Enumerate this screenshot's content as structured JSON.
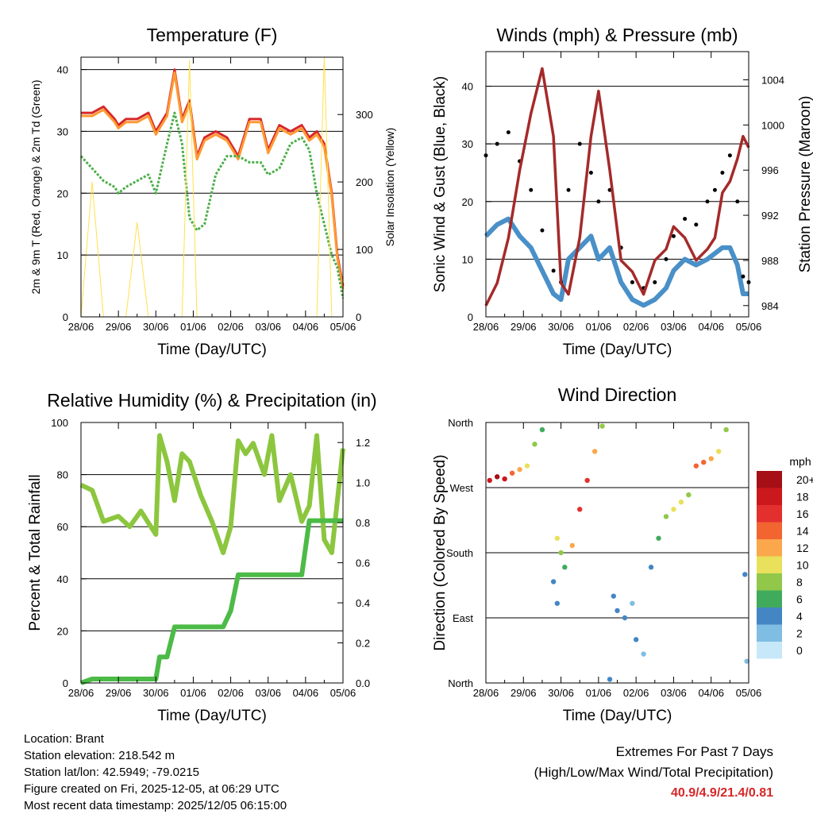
{
  "chart_data": [
    {
      "id": "temperature",
      "type": "line",
      "title": "Temperature (F)",
      "xlabel": "Time (Day/UTC)",
      "ylabel": "2m & 9m T (Red, Orange) & 2m Td (Green)",
      "ylabel_right": "Solar Insolation (Yellow)",
      "categories": [
        "28/06",
        "29/06",
        "30/06",
        "01/06",
        "02/06",
        "03/06",
        "04/06",
        "05/06"
      ],
      "ylim": [
        0,
        42
      ],
      "yticks": [
        0,
        10,
        20,
        30,
        40
      ],
      "y2lim": [
        0,
        385
      ],
      "y2ticks": [
        0,
        100,
        200,
        300
      ],
      "x": [
        0,
        0.3,
        0.6,
        0.9,
        1.0,
        1.2,
        1.5,
        1.8,
        2.0,
        2.3,
        2.5,
        2.7,
        2.9,
        3.1,
        3.3,
        3.6,
        3.9,
        4.2,
        4.5,
        4.8,
        5.0,
        5.3,
        5.6,
        5.9,
        6.1,
        6.3,
        6.5,
        6.7,
        6.85,
        7.0
      ],
      "series": [
        {
          "name": "2m T",
          "color": "#d62728",
          "values": [
            33,
            33,
            34,
            32,
            31,
            32,
            32,
            33,
            30,
            33,
            40,
            32,
            35,
            26,
            29,
            30,
            29,
            26,
            32,
            32,
            27,
            31,
            30,
            31,
            29,
            30,
            28,
            20,
            10,
            5
          ]
        },
        {
          "name": "9m T",
          "color": "#ff9933",
          "values": [
            32.5,
            32.5,
            33.5,
            31.5,
            30.5,
            31.5,
            31.5,
            32.5,
            29.5,
            32.5,
            39.5,
            31.5,
            34.5,
            25.5,
            28.5,
            29.5,
            28.5,
            25.5,
            31.5,
            31.5,
            26.5,
            30.5,
            29.5,
            30.5,
            28.5,
            29.5,
            27.5,
            19.5,
            9.5,
            4.5
          ]
        },
        {
          "name": "2m Td",
          "color": "#4daf4a",
          "values": [
            26,
            24,
            22,
            21,
            20,
            21,
            22,
            23,
            20,
            28,
            33,
            28,
            16,
            14,
            15,
            23,
            26,
            26,
            25,
            25,
            23,
            24,
            28,
            29,
            27,
            20,
            15,
            10,
            8,
            3
          ]
        },
        {
          "name": "Solar Insolation",
          "color": "#ffe14d",
          "values": [
            0,
            200,
            0,
            0,
            0,
            0,
            140,
            0,
            0,
            0,
            0,
            0,
            380,
            0,
            0,
            0,
            0,
            0,
            0,
            0,
            0,
            0,
            0,
            0,
            0,
            0,
            385,
            0,
            0,
            0
          ]
        }
      ]
    },
    {
      "id": "winds",
      "type": "line",
      "title": "Winds (mph) & Pressure (mb)",
      "xlabel": "Time (Day/UTC)",
      "ylabel": "Sonic Wind & Gust (Blue, Black)",
      "ylabel_right": "Station Pressure (Maroon)",
      "categories": [
        "28/06",
        "29/06",
        "30/06",
        "01/06",
        "02/06",
        "03/06",
        "04/06",
        "05/06"
      ],
      "ylim": [
        0,
        46
      ],
      "yticks": [
        0,
        10,
        20,
        30,
        40
      ],
      "y2lim": [
        983,
        1006.5
      ],
      "y2ticks": [
        984,
        988,
        992,
        996,
        1000,
        1004
      ],
      "x": [
        0,
        0.3,
        0.6,
        0.9,
        1.2,
        1.5,
        1.8,
        2.0,
        2.2,
        2.5,
        2.8,
        3.0,
        3.3,
        3.6,
        3.9,
        4.2,
        4.5,
        4.8,
        5.0,
        5.3,
        5.6,
        5.9,
        6.1,
        6.3,
        6.5,
        6.7,
        6.85,
        7.0
      ],
      "series": [
        {
          "name": "Sonic Wind",
          "color": "#4a90c8",
          "values": [
            14,
            16,
            17,
            14,
            12,
            8,
            4,
            3,
            10,
            12,
            14,
            10,
            12,
            6,
            3,
            2,
            3,
            5,
            8,
            10,
            9,
            10,
            11,
            12,
            12,
            9,
            4,
            4
          ]
        },
        {
          "name": "Gust",
          "color": "#000000",
          "values": [
            28,
            30,
            32,
            27,
            22,
            15,
            8,
            6,
            22,
            30,
            25,
            20,
            22,
            12,
            6,
            5,
            6,
            10,
            14,
            17,
            16,
            20,
            22,
            25,
            28,
            20,
            7,
            6
          ]
        },
        {
          "name": "Station Pressure",
          "color": "#a52a2a",
          "values": [
            984,
            986,
            990,
            996,
            1001,
            1005,
            999,
            986,
            985,
            990,
            999,
            1003,
            996,
            988,
            987,
            985,
            988,
            989,
            991,
            990,
            988,
            989,
            990,
            994,
            995,
            997,
            999,
            998
          ]
        }
      ]
    },
    {
      "id": "humidity",
      "type": "line",
      "title": "Relative Humidity (%) & Precipitation (in)",
      "xlabel": "Time (Day/UTC)",
      "ylabel": "Percent & Total Rainfall",
      "categories": [
        "28/06",
        "29/06",
        "30/06",
        "01/06",
        "02/06",
        "03/06",
        "04/06",
        "05/06"
      ],
      "ylim": [
        0,
        100
      ],
      "yticks": [
        0,
        20,
        40,
        60,
        80,
        100
      ],
      "y2lim": [
        0,
        1.3
      ],
      "y2ticks": [
        0.0,
        0.2,
        0.4,
        0.6,
        0.8,
        1.0,
        1.2
      ],
      "x": [
        0,
        0.3,
        0.6,
        1.0,
        1.3,
        1.6,
        2.0,
        2.1,
        2.3,
        2.5,
        2.7,
        2.9,
        3.2,
        3.5,
        3.8,
        4.0,
        4.2,
        4.4,
        4.6,
        4.9,
        5.1,
        5.3,
        5.6,
        5.9,
        6.1,
        6.3,
        6.5,
        6.7,
        6.85,
        7.0
      ],
      "series": [
        {
          "name": "Relative Humidity",
          "color": "#8cc63f",
          "values": [
            76,
            74,
            62,
            64,
            60,
            66,
            57,
            95,
            85,
            70,
            88,
            85,
            72,
            62,
            50,
            60,
            93,
            88,
            92,
            80,
            95,
            70,
            80,
            62,
            68,
            95,
            55,
            50,
            70,
            90
          ]
        },
        {
          "name": "Total Rainfall",
          "color": "#4cbb47",
          "values": [
            0,
            0.02,
            0.02,
            0.02,
            0.02,
            0.02,
            0.02,
            0.13,
            0.13,
            0.28,
            0.28,
            0.28,
            0.28,
            0.28,
            0.28,
            0.36,
            0.54,
            0.54,
            0.54,
            0.54,
            0.54,
            0.54,
            0.54,
            0.54,
            0.81,
            0.81,
            0.81,
            0.81,
            0.81,
            0.81
          ]
        }
      ]
    },
    {
      "id": "direction",
      "type": "scatter",
      "title": "Wind Direction",
      "xlabel": "Time (Day/UTC)",
      "ylabel": "Direction (Colored By Speed)",
      "categories": [
        "28/06",
        "29/06",
        "30/06",
        "01/06",
        "02/06",
        "03/06",
        "04/06",
        "05/06"
      ],
      "ylim": [
        0,
        360
      ],
      "yticks": [
        {
          "label": "North",
          "value": 0
        },
        {
          "label": "East",
          "value": 90
        },
        {
          "label": "South",
          "value": 180
        },
        {
          "label": "West",
          "value": 270
        },
        {
          "label": "North",
          "value": 360
        }
      ],
      "points": [
        [
          0.1,
          280,
          18
        ],
        [
          0.3,
          285,
          19
        ],
        [
          0.5,
          282,
          17
        ],
        [
          0.7,
          290,
          14
        ],
        [
          0.9,
          295,
          12
        ],
        [
          1.1,
          300,
          10
        ],
        [
          1.3,
          330,
          8
        ],
        [
          1.5,
          350,
          6
        ],
        [
          1.9,
          200,
          10
        ],
        [
          2.0,
          180,
          8
        ],
        [
          2.1,
          160,
          6
        ],
        [
          1.8,
          140,
          4
        ],
        [
          1.9,
          110,
          3
        ],
        [
          2.3,
          190,
          12
        ],
        [
          2.5,
          240,
          15
        ],
        [
          2.7,
          280,
          16
        ],
        [
          2.9,
          320,
          12
        ],
        [
          3.1,
          355,
          8
        ],
        [
          3.3,
          5,
          3
        ],
        [
          3.4,
          120,
          3
        ],
        [
          3.5,
          100,
          4
        ],
        [
          3.7,
          90,
          3
        ],
        [
          3.9,
          110,
          2
        ],
        [
          4.0,
          60,
          4
        ],
        [
          4.2,
          40,
          2
        ],
        [
          4.4,
          160,
          4
        ],
        [
          4.6,
          200,
          5
        ],
        [
          4.8,
          230,
          8
        ],
        [
          5.0,
          240,
          10
        ],
        [
          5.2,
          250,
          9
        ],
        [
          5.4,
          260,
          8
        ],
        [
          5.6,
          300,
          13
        ],
        [
          5.8,
          305,
          14
        ],
        [
          6.0,
          310,
          12
        ],
        [
          6.2,
          320,
          10
        ],
        [
          6.4,
          350,
          8
        ],
        [
          6.9,
          150,
          3
        ],
        [
          6.95,
          30,
          2
        ]
      ],
      "legend": {
        "title": "mph",
        "labels": [
          "20+",
          "18",
          "16",
          "14",
          "12",
          "10",
          "8",
          "6",
          "4",
          "2",
          "0"
        ],
        "colors": [
          "#a50f15",
          "#cb181d",
          "#e3302f",
          "#f26531",
          "#fba74b",
          "#e9e05b",
          "#91c84a",
          "#41ab5d",
          "#4486c4",
          "#7fbde3",
          "#c7e8f8"
        ]
      }
    }
  ],
  "station": {
    "location": "Location: Brant",
    "elevation": "Station elevation: 218.542 m",
    "latlon": "Station lat/lon: 42.5949; -79.0215",
    "created": "Figure created on Fri, 2025-12-05, at 06:29 UTC",
    "recent": "Most recent data timestamp: 2025/12/05 06:15:00"
  },
  "extremes": {
    "title": "Extremes For Past 7 Days",
    "subtitle": "(High/Low/Max Wind/Total Precipitation)",
    "values": "40.9/4.9/21.4/0.81"
  }
}
